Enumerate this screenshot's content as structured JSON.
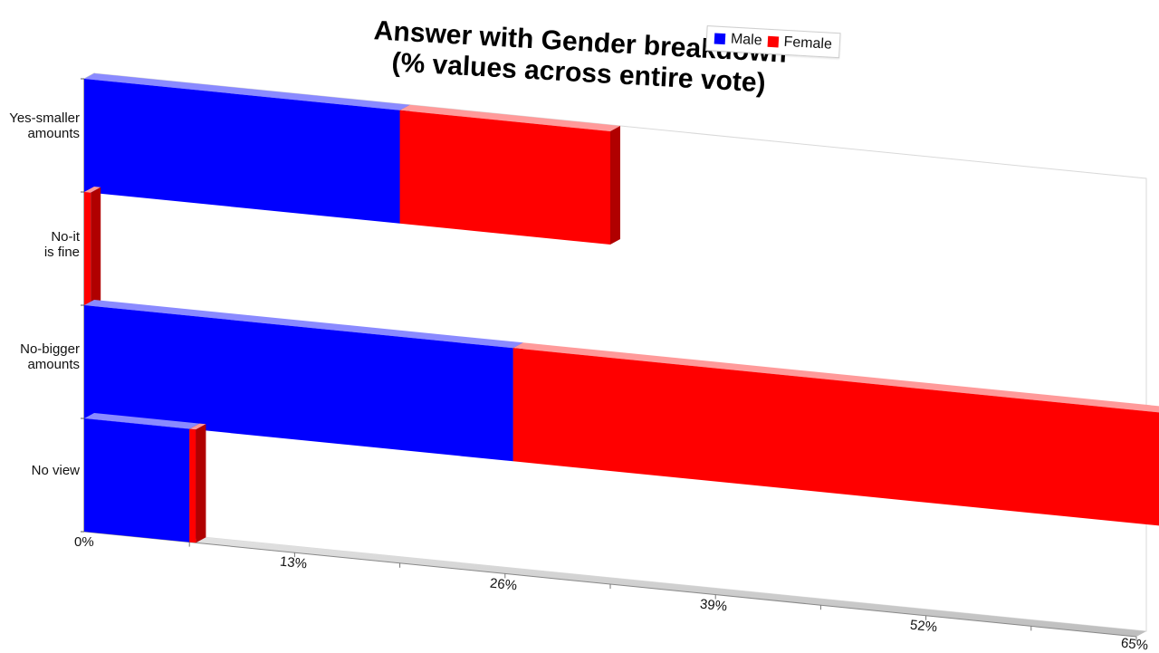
{
  "chart_data": {
    "type": "bar",
    "stacked": true,
    "orientation": "horizontal",
    "title": [
      "Answer with Gender breakdown",
      "(% values across entire vote)"
    ],
    "categories": [
      [
        "Yes-smaller",
        "amounts"
      ],
      [
        "No-it",
        "is fine"
      ],
      [
        "No-bigger",
        "amounts"
      ],
      [
        "No view"
      ]
    ],
    "series": [
      {
        "name": "Male",
        "color": "#0000ff",
        "values": [
          19.5,
          0,
          26.5,
          6.5
        ]
      },
      {
        "name": "Female",
        "color": "#ff0000",
        "values": [
          13.0,
          0.4,
          40.0,
          0.4
        ]
      }
    ],
    "xticks": [
      "0%",
      "13%",
      "26%",
      "39%",
      "52%",
      "65%"
    ],
    "xlim": [
      0,
      65
    ],
    "legend_position": "top-right",
    "grid": false,
    "view": "3d-perspective"
  }
}
